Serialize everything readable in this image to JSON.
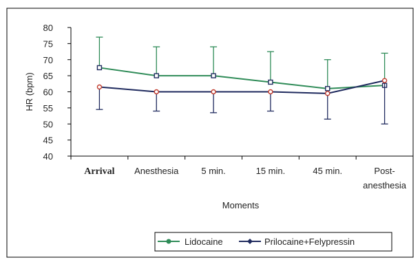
{
  "chart_data": {
    "type": "line",
    "xlabel": "Moments",
    "ylabel": "HR (bpm)",
    "ylim": [
      40,
      80
    ],
    "yticks": [
      40,
      45,
      50,
      55,
      60,
      65,
      70,
      75,
      80
    ],
    "categories": [
      {
        "lines": [
          "Arrival"
        ],
        "style": "serif-bold"
      },
      {
        "lines": [
          "Anesthesia"
        ]
      },
      {
        "lines": [
          "5 min."
        ]
      },
      {
        "lines": [
          "15 min."
        ]
      },
      {
        "lines": [
          "45 min."
        ]
      },
      {
        "lines": [
          "Post-",
          "anesthesia"
        ]
      }
    ],
    "legend_position": "bottom",
    "series": [
      {
        "name": "Lidocaine",
        "color": "#2e8b57",
        "marker": "square-open",
        "values": [
          67.5,
          65.0,
          65.0,
          63.0,
          61.0,
          62.0
        ],
        "error_upper": [
          77.0,
          74.0,
          74.0,
          72.5,
          70.0,
          72.0
        ],
        "error_lower": [
          null,
          null,
          null,
          null,
          null,
          null
        ]
      },
      {
        "name": "Prilocaine+Felypressin",
        "color": "#1f2a5e",
        "marker": "circle-open",
        "values": [
          61.5,
          60.0,
          60.0,
          60.0,
          59.5,
          63.5
        ],
        "error_upper": [
          null,
          null,
          null,
          null,
          null,
          null
        ],
        "error_lower": [
          54.5,
          54.0,
          53.5,
          54.0,
          51.5,
          50.0
        ]
      }
    ]
  }
}
